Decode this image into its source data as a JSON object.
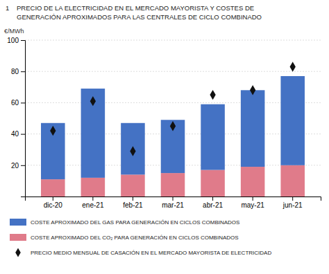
{
  "chart_data": {
    "type": "bar",
    "title": "PRECIO DE LA ELECTRICIDAD EN EL MERCADO MAYORISTA Y COSTES DE",
    "subtitle": "GENERACIÓN APROXIMADOS PARA LAS CENTRALES DE CICLO COMBINADO",
    "annotations": [
      "1"
    ],
    "ylabel": "€/MWh",
    "categories": [
      "dic-20",
      "ene-21",
      "feb-21",
      "mar-21",
      "abr-21",
      "may-21",
      "jun-21"
    ],
    "series": [
      {
        "name": "COSTE APROXIMADO DEL CO₂ PARA GENERACIÓN EN CICLOS COMBINADOS",
        "type": "bar",
        "color": "#E07B8A",
        "values": [
          11,
          12,
          14,
          15,
          17,
          19,
          20
        ]
      },
      {
        "name": "COSTE APROXIMADO DEL GAS PARA GENERACIÓN EN CICLOS COMBINADOS",
        "type": "bar",
        "color": "#4472C4",
        "values": [
          36,
          57,
          33,
          34,
          42,
          49,
          57
        ]
      },
      {
        "name": "PRECIO MEDIO MENSUAL DE CASACIÓN EN EL MERCADO MAYORISTA DE ELECTRICIDAD",
        "type": "scatter",
        "marker": "diamond",
        "color": "#111111",
        "values": [
          42,
          61,
          29,
          45,
          65,
          68,
          83
        ]
      }
    ],
    "stacked": true,
    "ylim": [
      0,
      100
    ],
    "yticks": [
      20,
      40,
      60,
      80,
      100
    ],
    "grid": true,
    "legend": "bottom"
  }
}
